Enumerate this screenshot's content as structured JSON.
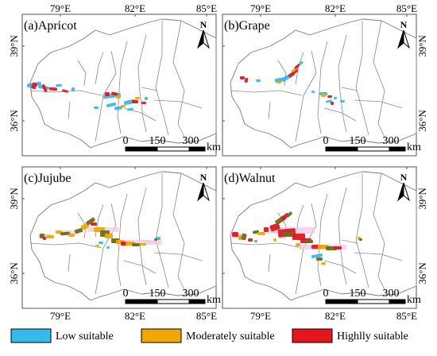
{
  "panels": [
    {
      "label": "(a)Apricot",
      "lon_ticks": [
        "79°E",
        "82°E",
        "85°E"
      ],
      "lat_ticks": [
        "39°N",
        "36°N"
      ],
      "north": "N",
      "scalebar": [
        "0",
        "150",
        "300",
        "km"
      ]
    },
    {
      "label": "(b)Grape",
      "lon_ticks": [
        "79°E",
        "82°E",
        "85°E"
      ],
      "lat_ticks": [
        "39°N",
        "36°N"
      ],
      "north": "N",
      "scalebar": [
        "0",
        "150",
        "300",
        "km"
      ]
    },
    {
      "label": "(c)Jujube",
      "lon_ticks": [
        "79°E",
        "82°E",
        "85°E"
      ],
      "lat_ticks": [
        "39°N",
        "36°N"
      ],
      "north": "N",
      "scalebar": [
        "0",
        "150",
        "300",
        "km"
      ]
    },
    {
      "label": "(d)Walnut",
      "lon_ticks": [
        "79°E",
        "82°E",
        "85°E"
      ],
      "lat_ticks": [
        "39°N",
        "36°N"
      ],
      "north": "N",
      "scalebar": [
        "0",
        "150",
        "300",
        "km"
      ]
    }
  ],
  "legend": [
    {
      "label": "Low suitable",
      "color": "#33bbee"
    },
    {
      "label": "Moderately suitable",
      "color": "#f0a800"
    },
    {
      "label": "Highlly suitable",
      "color": "#e8141c"
    }
  ],
  "colors": {
    "low": "#33bbee",
    "moderate": "#f0a800",
    "high": "#e8141c",
    "dark_olive": "#6b6b1a",
    "halo": "#f4c8e4"
  }
}
